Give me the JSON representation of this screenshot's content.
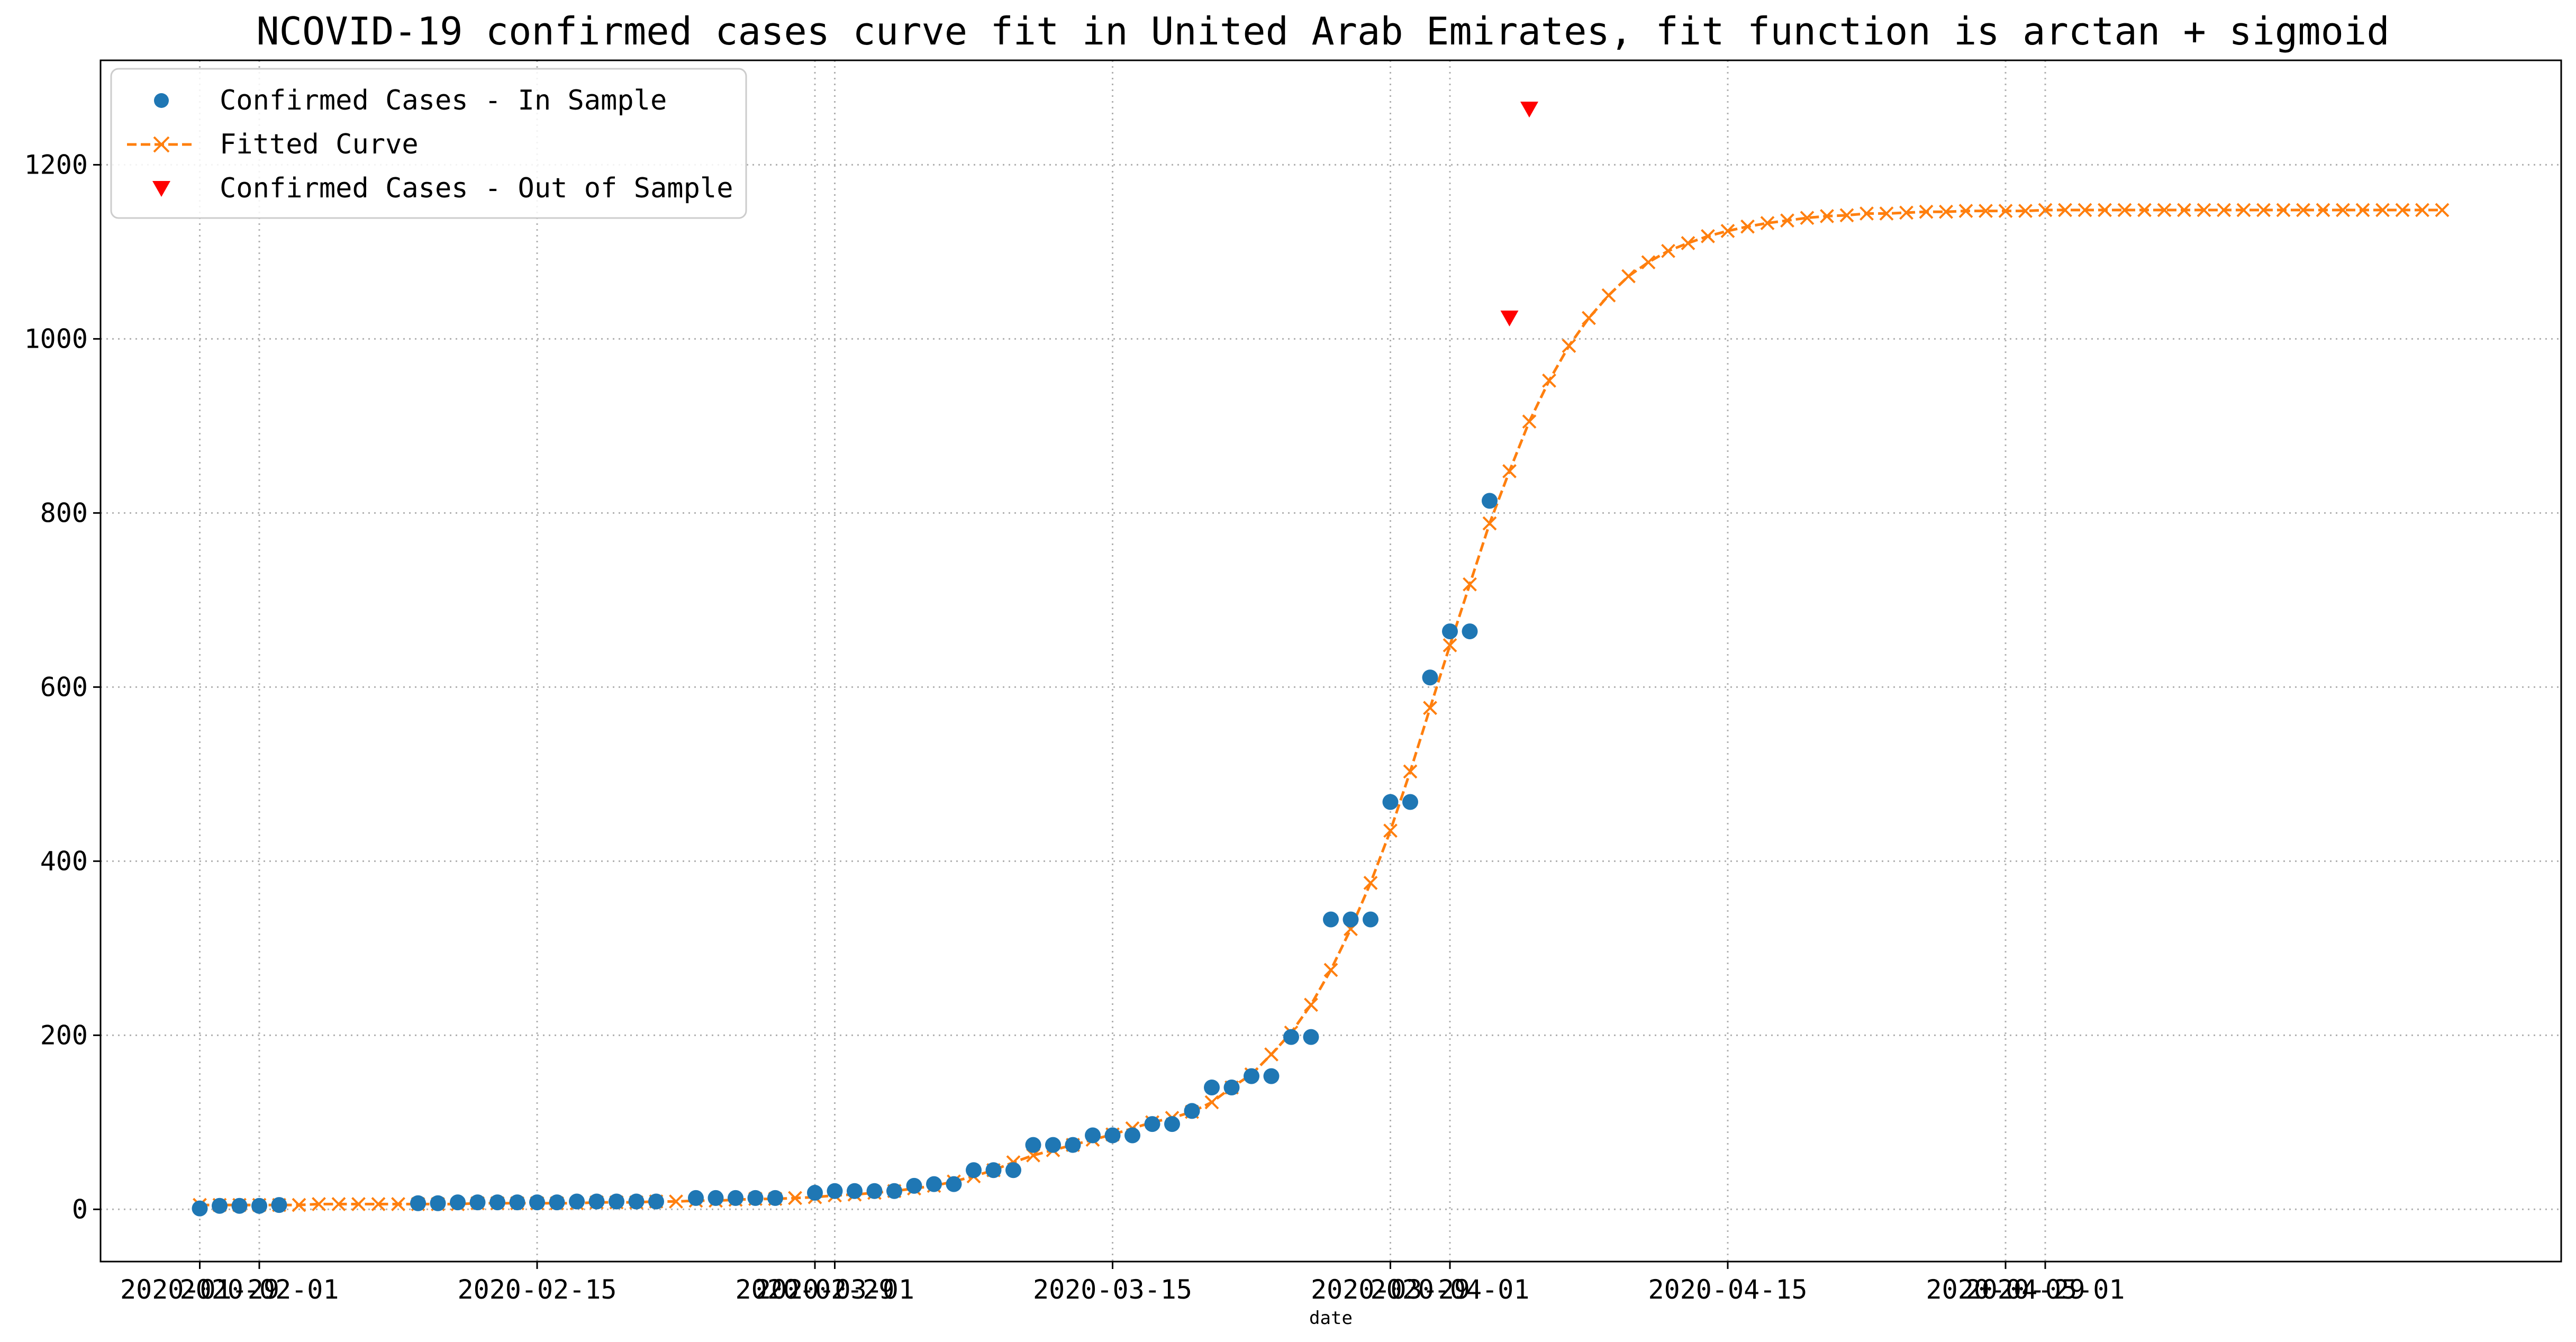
{
  "chart_data": {
    "type": "line",
    "title": "NCOVID-19 confirmed cases curve fit in United Arab Emirates, fit function is arctan + sigmoid",
    "xlabel": "date",
    "ylabel": "",
    "x_tick_labels": [
      "2020-01-29",
      "2020-02-01",
      "2020-02-15",
      "2020-02-29",
      "2020-03-01",
      "2020-03-15",
      "2020-03-29",
      "2020-04-01",
      "2020-04-15",
      "2020-04-29",
      "2020-05-01"
    ],
    "x_tick_dates": [
      "2020-01-29",
      "2020-02-01",
      "2020-02-15",
      "2020-02-29",
      "2020-03-01",
      "2020-03-15",
      "2020-03-29",
      "2020-04-01",
      "2020-04-15",
      "2020-04-29",
      "2020-05-01"
    ],
    "y_ticks": [
      0,
      200,
      400,
      600,
      800,
      1000,
      1200
    ],
    "xlim": [
      "2020-01-24",
      "2020-05-27"
    ],
    "ylim": [
      -60,
      1320
    ],
    "grid": true,
    "legend_position": "top-left",
    "colors": {
      "in_sample": "#1f77b4",
      "fitted": "#ff7f0e",
      "out_of_sample": "#ff0000"
    },
    "series": [
      {
        "name": "Confirmed Cases - In Sample",
        "style": "markers",
        "marker": "circle",
        "points": [
          [
            "2020-01-29",
            1
          ],
          [
            "2020-01-30",
            4
          ],
          [
            "2020-01-31",
            4
          ],
          [
            "2020-02-01",
            4
          ],
          [
            "2020-02-02",
            5
          ],
          [
            "2020-02-09",
            7
          ],
          [
            "2020-02-10",
            7
          ],
          [
            "2020-02-11",
            8
          ],
          [
            "2020-02-12",
            8
          ],
          [
            "2020-02-13",
            8
          ],
          [
            "2020-02-14",
            8
          ],
          [
            "2020-02-15",
            8
          ],
          [
            "2020-02-16",
            8
          ],
          [
            "2020-02-17",
            9
          ],
          [
            "2020-02-18",
            9
          ],
          [
            "2020-02-19",
            9
          ],
          [
            "2020-02-20",
            9
          ],
          [
            "2020-02-21",
            9
          ],
          [
            "2020-02-23",
            13
          ],
          [
            "2020-02-24",
            13
          ],
          [
            "2020-02-25",
            13
          ],
          [
            "2020-02-26",
            13
          ],
          [
            "2020-02-27",
            13
          ],
          [
            "2020-02-29",
            19
          ],
          [
            "2020-03-01",
            21
          ],
          [
            "2020-03-02",
            21
          ],
          [
            "2020-03-03",
            21
          ],
          [
            "2020-03-04",
            21
          ],
          [
            "2020-03-05",
            27
          ],
          [
            "2020-03-06",
            29
          ],
          [
            "2020-03-07",
            29
          ],
          [
            "2020-03-08",
            45
          ],
          [
            "2020-03-09",
            45
          ],
          [
            "2020-03-10",
            45
          ],
          [
            "2020-03-11",
            74
          ],
          [
            "2020-03-12",
            74
          ],
          [
            "2020-03-13",
            74
          ],
          [
            "2020-03-14",
            85
          ],
          [
            "2020-03-15",
            85
          ],
          [
            "2020-03-16",
            85
          ],
          [
            "2020-03-17",
            98
          ],
          [
            "2020-03-18",
            98
          ],
          [
            "2020-03-19",
            113
          ],
          [
            "2020-03-20",
            140
          ],
          [
            "2020-03-21",
            140
          ],
          [
            "2020-03-22",
            153
          ],
          [
            "2020-03-23",
            153
          ],
          [
            "2020-03-24",
            198
          ],
          [
            "2020-03-25",
            198
          ],
          [
            "2020-03-26",
            333
          ],
          [
            "2020-03-27",
            333
          ],
          [
            "2020-03-28",
            333
          ],
          [
            "2020-03-29",
            468
          ],
          [
            "2020-03-30",
            468
          ],
          [
            "2020-03-31",
            611
          ],
          [
            "2020-04-01",
            664
          ],
          [
            "2020-04-02",
            664
          ],
          [
            "2020-04-03",
            814
          ]
        ]
      },
      {
        "name": "Fitted Curve",
        "style": "dashed-line-x-markers",
        "marker": "x",
        "points": [
          [
            "2020-01-29",
            5
          ],
          [
            "2020-01-30",
            5
          ],
          [
            "2020-01-31",
            5
          ],
          [
            "2020-02-01",
            5
          ],
          [
            "2020-02-02",
            5
          ],
          [
            "2020-02-03",
            5
          ],
          [
            "2020-02-04",
            6
          ],
          [
            "2020-02-05",
            6
          ],
          [
            "2020-02-06",
            6
          ],
          [
            "2020-02-07",
            6
          ],
          [
            "2020-02-08",
            6
          ],
          [
            "2020-02-09",
            6
          ],
          [
            "2020-02-10",
            6
          ],
          [
            "2020-02-11",
            6
          ],
          [
            "2020-02-12",
            7
          ],
          [
            "2020-02-13",
            7
          ],
          [
            "2020-02-14",
            7
          ],
          [
            "2020-02-15",
            7
          ],
          [
            "2020-02-16",
            7
          ],
          [
            "2020-02-17",
            7
          ],
          [
            "2020-02-18",
            8
          ],
          [
            "2020-02-19",
            8
          ],
          [
            "2020-02-20",
            8
          ],
          [
            "2020-02-21",
            9
          ],
          [
            "2020-02-22",
            9
          ],
          [
            "2020-02-23",
            10
          ],
          [
            "2020-02-24",
            10
          ],
          [
            "2020-02-25",
            11
          ],
          [
            "2020-02-26",
            12
          ],
          [
            "2020-02-27",
            12
          ],
          [
            "2020-02-28",
            13
          ],
          [
            "2020-02-29",
            14
          ],
          [
            "2020-03-01",
            16
          ],
          [
            "2020-03-02",
            17
          ],
          [
            "2020-03-03",
            19
          ],
          [
            "2020-03-04",
            21
          ],
          [
            "2020-03-05",
            24
          ],
          [
            "2020-03-06",
            27
          ],
          [
            "2020-03-07",
            32
          ],
          [
            "2020-03-08",
            38
          ],
          [
            "2020-03-09",
            45
          ],
          [
            "2020-03-10",
            54
          ],
          [
            "2020-03-11",
            62
          ],
          [
            "2020-03-12",
            68
          ],
          [
            "2020-03-13",
            74
          ],
          [
            "2020-03-14",
            80
          ],
          [
            "2020-03-15",
            86
          ],
          [
            "2020-03-16",
            93
          ],
          [
            "2020-03-17",
            100
          ],
          [
            "2020-03-18",
            105
          ],
          [
            "2020-03-19",
            112
          ],
          [
            "2020-03-20",
            123
          ],
          [
            "2020-03-21",
            140
          ],
          [
            "2020-03-22",
            155
          ],
          [
            "2020-03-23",
            178
          ],
          [
            "2020-03-24",
            203
          ],
          [
            "2020-03-25",
            235
          ],
          [
            "2020-03-26",
            275
          ],
          [
            "2020-03-27",
            322
          ],
          [
            "2020-03-28",
            375
          ],
          [
            "2020-03-29",
            435
          ],
          [
            "2020-03-30",
            503
          ],
          [
            "2020-03-31",
            576
          ],
          [
            "2020-04-01",
            648
          ],
          [
            "2020-04-02",
            718
          ],
          [
            "2020-04-03",
            788
          ],
          [
            "2020-04-04",
            848
          ],
          [
            "2020-04-05",
            905
          ],
          [
            "2020-04-06",
            952
          ],
          [
            "2020-04-07",
            992
          ],
          [
            "2020-04-08",
            1024
          ],
          [
            "2020-04-09",
            1050
          ],
          [
            "2020-04-10",
            1072
          ],
          [
            "2020-04-11",
            1088
          ],
          [
            "2020-04-12",
            1101
          ],
          [
            "2020-04-13",
            1110
          ],
          [
            "2020-04-14",
            1118
          ],
          [
            "2020-04-15",
            1124
          ],
          [
            "2020-04-16",
            1129
          ],
          [
            "2020-04-17",
            1133
          ],
          [
            "2020-04-18",
            1136
          ],
          [
            "2020-04-19",
            1139
          ],
          [
            "2020-04-20",
            1141
          ],
          [
            "2020-04-21",
            1142
          ],
          [
            "2020-04-22",
            1144
          ],
          [
            "2020-04-23",
            1144
          ],
          [
            "2020-04-24",
            1145
          ],
          [
            "2020-04-25",
            1146
          ],
          [
            "2020-04-26",
            1146
          ],
          [
            "2020-04-27",
            1147
          ],
          [
            "2020-04-28",
            1147
          ],
          [
            "2020-04-29",
            1147
          ],
          [
            "2020-04-30",
            1147
          ],
          [
            "2020-05-01",
            1148
          ],
          [
            "2020-05-02",
            1148
          ],
          [
            "2020-05-03",
            1148
          ],
          [
            "2020-05-04",
            1148
          ],
          [
            "2020-05-05",
            1148
          ],
          [
            "2020-05-06",
            1148
          ],
          [
            "2020-05-07",
            1148
          ],
          [
            "2020-05-08",
            1148
          ],
          [
            "2020-05-09",
            1148
          ],
          [
            "2020-05-10",
            1148
          ],
          [
            "2020-05-11",
            1148
          ],
          [
            "2020-05-12",
            1148
          ],
          [
            "2020-05-13",
            1148
          ],
          [
            "2020-05-14",
            1148
          ],
          [
            "2020-05-15",
            1148
          ],
          [
            "2020-05-16",
            1148
          ],
          [
            "2020-05-17",
            1148
          ],
          [
            "2020-05-18",
            1148
          ],
          [
            "2020-05-19",
            1148
          ],
          [
            "2020-05-20",
            1148
          ],
          [
            "2020-05-21",
            1148
          ]
        ]
      },
      {
        "name": "Confirmed Cases - Out of Sample",
        "style": "markers",
        "marker": "triangle-down",
        "points": [
          [
            "2020-04-04",
            1024
          ],
          [
            "2020-04-05",
            1264
          ]
        ]
      }
    ]
  }
}
